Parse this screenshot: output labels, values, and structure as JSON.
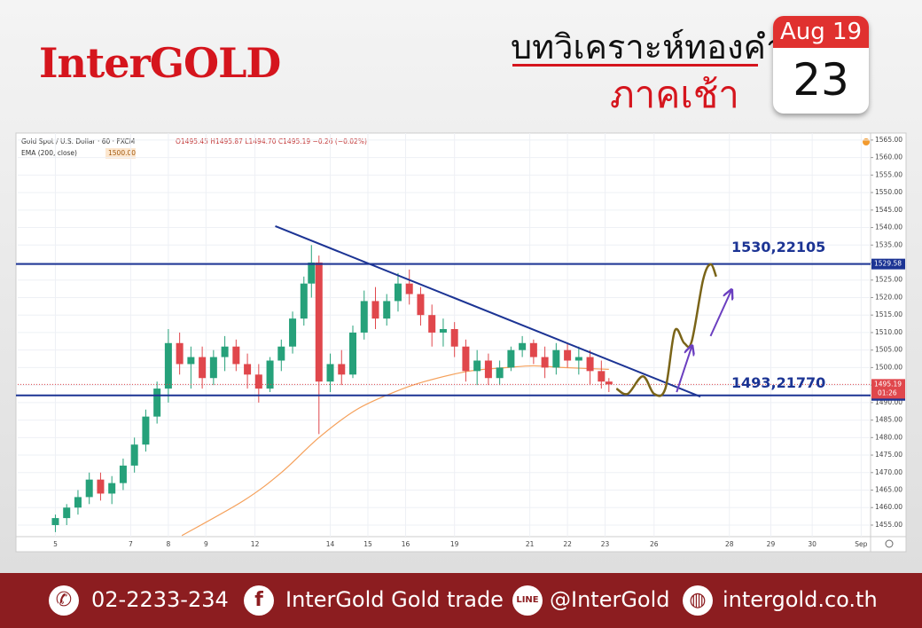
{
  "header": {
    "logo": "InterGOLD",
    "title": "บทวิเคราะห์ทองคำ",
    "subtitle": "ภาคเช้า",
    "calendar": {
      "month": "Aug 19",
      "day": "23"
    }
  },
  "chart_data": {
    "type": "candlestick",
    "symbol": "Gold Spot / U.S. Dollar · 60 · FXCM",
    "ohlc_info": "O1495.45 H1495.87 L1494.70 C1495.19 −0.26 (−0.02%)",
    "indicator": "EMA (200, close)",
    "indicator_value": "1500.00",
    "up_color": "#26a17a",
    "down_color": "#e0474c",
    "grid": true,
    "xlim": [
      -1,
      21.65
    ],
    "ylim": [
      1451.7,
      1567
    ],
    "xticks": [
      {
        "value": 0,
        "label": "5"
      },
      {
        "value": 2,
        "label": "7"
      },
      {
        "value": 3,
        "label": "8"
      },
      {
        "value": 4,
        "label": "9"
      },
      {
        "value": 5.3,
        "label": "12"
      },
      {
        "value": 7.3,
        "label": "14"
      },
      {
        "value": 8.3,
        "label": "15"
      },
      {
        "value": 9.3,
        "label": "16"
      },
      {
        "value": 10.6,
        "label": "19"
      },
      {
        "value": 12.6,
        "label": "21"
      },
      {
        "value": 13.6,
        "label": "22"
      },
      {
        "value": 14.6,
        "label": "23"
      },
      {
        "value": 15.9,
        "label": "26"
      },
      {
        "value": 17.9,
        "label": "28"
      },
      {
        "value": 19.0,
        "label": "29"
      },
      {
        "value": 20.1,
        "label": "30"
      },
      {
        "value": 21.4,
        "label": "Sep"
      }
    ],
    "yticks": [
      {
        "value": 1455,
        "label": "1455.00"
      },
      {
        "value": 1460,
        "label": "1460.00"
      },
      {
        "value": 1465,
        "label": "1465.00"
      },
      {
        "value": 1470,
        "label": "1470.00"
      },
      {
        "value": 1475,
        "label": "1475.00"
      },
      {
        "value": 1480,
        "label": "1480.00"
      },
      {
        "value": 1485,
        "label": "1485.00"
      },
      {
        "value": 1490,
        "label": "1490.00"
      },
      {
        "value": 1495,
        "label": "1495.00"
      },
      {
        "value": 1500,
        "label": "1500.00"
      },
      {
        "value": 1505,
        "label": "1505.00"
      },
      {
        "value": 1510,
        "label": "1510.00"
      },
      {
        "value": 1515,
        "label": "1515.00"
      },
      {
        "value": 1520,
        "label": "1520.00"
      },
      {
        "value": 1525,
        "label": "1525.00"
      },
      {
        "value": 1530,
        "label": "1530.00"
      },
      {
        "value": 1535,
        "label": "1535.00"
      },
      {
        "value": 1540,
        "label": "1540.00"
      },
      {
        "value": 1545,
        "label": "1545.00"
      },
      {
        "value": 1550,
        "label": "1550.00"
      },
      {
        "value": 1555,
        "label": "1555.00"
      },
      {
        "value": 1560,
        "label": "1560.00"
      },
      {
        "value": 1565,
        "label": "1565.00"
      }
    ],
    "x": [
      0,
      0.3,
      0.6,
      0.9,
      1.2,
      1.5,
      1.8,
      2.1,
      2.4,
      2.7,
      3.0,
      3.3,
      3.6,
      3.9,
      4.2,
      4.5,
      4.8,
      5.1,
      5.4,
      5.7,
      6.0,
      6.3,
      6.6,
      6.8,
      7.0,
      7.3,
      7.6,
      7.9,
      8.2,
      8.5,
      8.8,
      9.1,
      9.4,
      9.7,
      10.0,
      10.3,
      10.6,
      10.9,
      11.2,
      11.5,
      11.8,
      12.1,
      12.4,
      12.7,
      13.0,
      13.3,
      13.6,
      13.9,
      14.2,
      14.5,
      14.7
    ],
    "open": [
      1455,
      1457,
      1460,
      1463,
      1468,
      1464,
      1467,
      1472,
      1478,
      1486,
      1494,
      1507,
      1501,
      1503,
      1497,
      1503,
      1506,
      1501,
      1498,
      1494,
      1502,
      1506,
      1514,
      1524,
      1530,
      1496,
      1501,
      1498,
      1510,
      1519,
      1514,
      1519,
      1524,
      1521,
      1515,
      1510,
      1511,
      1506,
      1499,
      1502,
      1497,
      1500,
      1505,
      1507,
      1503,
      1500,
      1505,
      1502,
      1503,
      1499,
      1496
    ],
    "high": [
      1458,
      1461,
      1465,
      1470,
      1470,
      1469,
      1474,
      1480,
      1488,
      1496,
      1511,
      1510,
      1506,
      1506,
      1505,
      1509,
      1508,
      1504,
      1501,
      1503,
      1508,
      1516,
      1526,
      1535,
      1532,
      1504,
      1505,
      1512,
      1522,
      1523,
      1521,
      1527,
      1528,
      1523,
      1518,
      1514,
      1513,
      1508,
      1505,
      1504,
      1502,
      1506,
      1509,
      1508,
      1506,
      1507,
      1507,
      1506,
      1505,
      1502,
      1497
    ],
    "low": [
      1453,
      1455,
      1458,
      1461,
      1462,
      1461,
      1465,
      1470,
      1476,
      1484,
      1490,
      1498,
      1494,
      1494,
      1495,
      1499,
      1499,
      1494,
      1490,
      1493,
      1499,
      1504,
      1512,
      1520,
      1481,
      1493,
      1495,
      1497,
      1508,
      1511,
      1512,
      1516,
      1518,
      1512,
      1506,
      1506,
      1503,
      1496,
      1495,
      1495,
      1495,
      1499,
      1503,
      1501,
      1497,
      1498,
      1500,
      1498,
      1495,
      1494,
      1493
    ],
    "close": [
      1457,
      1460,
      1463,
      1468,
      1464,
      1467,
      1472,
      1478,
      1486,
      1494,
      1507,
      1501,
      1503,
      1497,
      1503,
      1506,
      1501,
      1498,
      1494,
      1502,
      1506,
      1514,
      1524,
      1530,
      1496,
      1501,
      1498,
      1510,
      1519,
      1514,
      1519,
      1524,
      1521,
      1515,
      1510,
      1511,
      1506,
      1499,
      1502,
      1497,
      1500,
      1505,
      1507,
      1503,
      1500,
      1505,
      1502,
      1503,
      1499,
      1496,
      1495.19
    ],
    "ema": {
      "color": "#f5a05a",
      "x": [
        3.36,
        5,
        6,
        7,
        8,
        9,
        9.8,
        11,
        12,
        12.7,
        13.5,
        14.7
      ],
      "values": [
        1452,
        1462,
        1470,
        1480,
        1488,
        1493,
        1496,
        1499,
        1500,
        1500.5,
        1500,
        1499.5
      ]
    },
    "countdown": "01:26",
    "levels": [
      {
        "value": 1529.58,
        "annotation": "1530,22105"
      },
      {
        "value": 1492.06,
        "annotation": "1493,21770"
      }
    ],
    "level_color": "#1c3494",
    "trendline": {
      "color": "#1c3494",
      "x": [
        5.84,
        17.13
      ],
      "values": [
        1540.4,
        1491.7
      ]
    },
    "projection": {
      "color": "#7a6418",
      "x": [
        14.9,
        15.2,
        15.6,
        15.9,
        16.2,
        16.45,
        16.7,
        16.9,
        17.2,
        17.4,
        17.55
      ],
      "values": [
        1494,
        1492.5,
        1497.5,
        1492.5,
        1494,
        1510.5,
        1507,
        1507.5,
        1525,
        1529.5,
        1526
      ]
    },
    "arrows": {
      "color": "#6b3fc0",
      "items": [
        {
          "x": [
            16.5,
            16.9
          ],
          "values": [
            1493,
            1506
          ]
        },
        {
          "x": [
            17.4,
            17.95
          ],
          "values": [
            1509,
            1522
          ]
        }
      ]
    }
  },
  "footer": {
    "phone": "02-2233-234",
    "facebook": "InterGold Gold trade",
    "line": "@InterGold",
    "website": "intergold.co.th"
  }
}
